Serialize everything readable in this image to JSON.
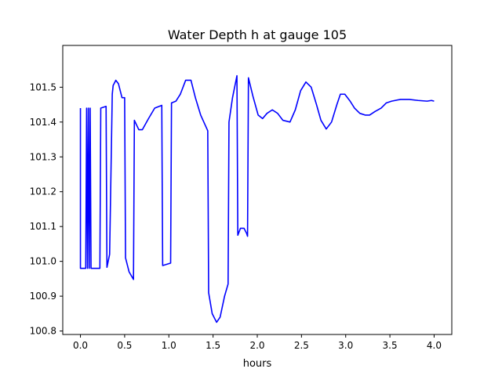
{
  "chart_data": {
    "type": "line",
    "title": "Water Depth h at gauge 105",
    "xlabel": "hours",
    "ylabel": "",
    "xlim": [
      -0.2,
      4.2
    ],
    "ylim": [
      100.79,
      101.62
    ],
    "xticks": [
      0.0,
      0.5,
      1.0,
      1.5,
      2.0,
      2.5,
      3.0,
      3.5,
      4.0
    ],
    "xtick_labels": [
      "0.0",
      "0.5",
      "1.0",
      "1.5",
      "2.0",
      "2.5",
      "3.0",
      "3.5",
      "4.0"
    ],
    "yticks": [
      100.8,
      100.9,
      101.0,
      101.1,
      101.2,
      101.3,
      101.4,
      101.5
    ],
    "ytick_labels": [
      "100.8",
      "100.9",
      "101.0",
      "101.1",
      "101.2",
      "101.3",
      "101.4",
      "101.5"
    ],
    "grid": false,
    "legend": "none",
    "series": [
      {
        "color": "#0000ff",
        "x": [
          0.0,
          0.0,
          0.06,
          0.07,
          0.08,
          0.09,
          0.1,
          0.11,
          0.12,
          0.13,
          0.22,
          0.23,
          0.29,
          0.3,
          0.33,
          0.36,
          0.37,
          0.4,
          0.43,
          0.47,
          0.5,
          0.51,
          0.55,
          0.6,
          0.61,
          0.66,
          0.7,
          0.77,
          0.84,
          0.92,
          0.93,
          1.02,
          1.03,
          1.08,
          1.13,
          1.19,
          1.25,
          1.3,
          1.36,
          1.44,
          1.45,
          1.49,
          1.54,
          1.58,
          1.63,
          1.67,
          1.68,
          1.72,
          1.77,
          1.78,
          1.81,
          1.85,
          1.88,
          1.89,
          1.9,
          1.95,
          2.01,
          2.06,
          2.11,
          2.17,
          2.23,
          2.29,
          2.37,
          2.43,
          2.49,
          2.55,
          2.61,
          2.67,
          2.72,
          2.78,
          2.84,
          2.9,
          2.94,
          2.99,
          3.05,
          3.1,
          3.16,
          3.22,
          3.27,
          3.33,
          3.4,
          3.46,
          3.52,
          3.62,
          3.72,
          3.82,
          3.92,
          3.97,
          4.0
        ],
        "y": [
          101.44,
          100.98,
          100.98,
          101.44,
          100.98,
          101.44,
          100.98,
          101.44,
          100.98,
          100.98,
          100.98,
          101.44,
          101.445,
          100.983,
          101.02,
          101.48,
          101.505,
          101.52,
          101.51,
          101.47,
          101.47,
          101.01,
          100.97,
          100.948,
          101.405,
          101.378,
          101.378,
          101.41,
          101.44,
          101.448,
          100.988,
          100.995,
          101.455,
          101.46,
          101.48,
          101.52,
          101.52,
          101.47,
          101.42,
          101.375,
          100.91,
          100.85,
          100.825,
          100.84,
          100.9,
          100.935,
          101.4,
          101.47,
          101.533,
          101.075,
          101.095,
          101.095,
          101.08,
          101.072,
          101.527,
          101.475,
          101.42,
          101.41,
          101.425,
          101.435,
          101.425,
          101.405,
          101.4,
          101.435,
          101.49,
          101.515,
          101.5,
          101.45,
          101.405,
          101.38,
          101.4,
          101.45,
          101.48,
          101.48,
          101.46,
          101.44,
          101.425,
          101.42,
          101.42,
          101.43,
          101.44,
          101.455,
          101.46,
          101.465,
          101.465,
          101.462,
          101.46,
          101.462,
          101.46
        ]
      }
    ]
  }
}
